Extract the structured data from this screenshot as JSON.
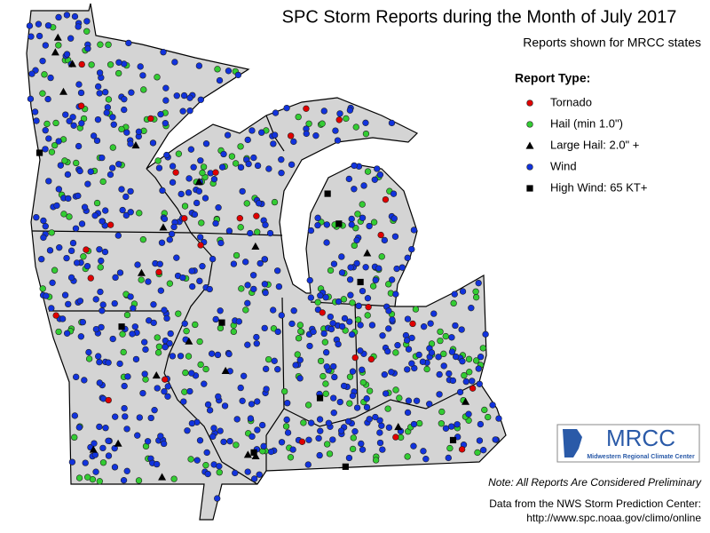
{
  "title": "SPC Storm Reports during the Month of July 2017",
  "subtitle": "Reports shown for MRCC states",
  "legend": {
    "title": "Report Type:",
    "items": [
      {
        "label": "Tornado",
        "color": "#e00000",
        "shape": "circle"
      },
      {
        "label": "Hail (min 1.0\")",
        "color": "#33cc33",
        "shape": "circle"
      },
      {
        "label": "Large Hail: 2.0\" +",
        "color": "#000000",
        "shape": "triangle"
      },
      {
        "label": "Wind",
        "color": "#1133dd",
        "shape": "circle"
      },
      {
        "label": "High Wind: 65 KT+",
        "color": "#000000",
        "shape": "square"
      }
    ]
  },
  "logo": {
    "text": "MRCC",
    "subtext": "Midwestern Regional Climate Center"
  },
  "note": "Note: All Reports Are Considered Preliminary",
  "source": [
    "Data from the NWS Storm Prediction Center:",
    "http://www.spc.noaa.gov/climo/online"
  ]
}
